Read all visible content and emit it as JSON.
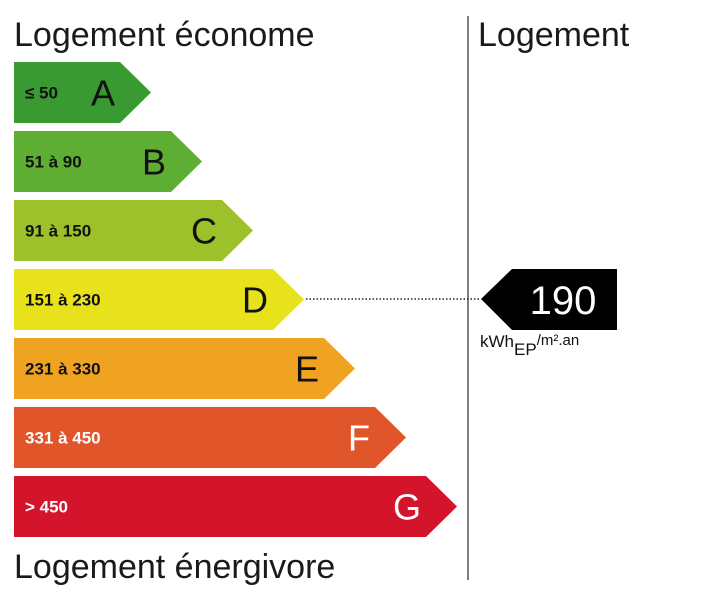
{
  "header": {
    "left_title": "Logement économe",
    "right_title": "Logement"
  },
  "footer": {
    "left_title": "Logement énergivore"
  },
  "bands": [
    {
      "range": "≤ 50",
      "letter": "A",
      "color": "#3a9a32",
      "text_color": "#111111"
    },
    {
      "range": "51 à 90",
      "letter": "B",
      "color": "#5fae34",
      "text_color": "#111111"
    },
    {
      "range": "91 à 150",
      "letter": "C",
      "color": "#9dc12a",
      "text_color": "#111111"
    },
    {
      "range": "151 à 230",
      "letter": "D",
      "color": "#e8e21c",
      "text_color": "#111111"
    },
    {
      "range": "231 à 330",
      "letter": "E",
      "color": "#efa320",
      "text_color": "#111111"
    },
    {
      "range": "331 à 450",
      "letter": "F",
      "color": "#e0562a",
      "text_color": "#ffffff"
    },
    {
      "range": "> 450",
      "letter": "G",
      "color": "#d3142a",
      "text_color": "#ffffff"
    }
  ],
  "indicator": {
    "value": "190",
    "unit": "kWh",
    "unit_sub": "EP",
    "unit_suffix": "/m².an"
  }
}
